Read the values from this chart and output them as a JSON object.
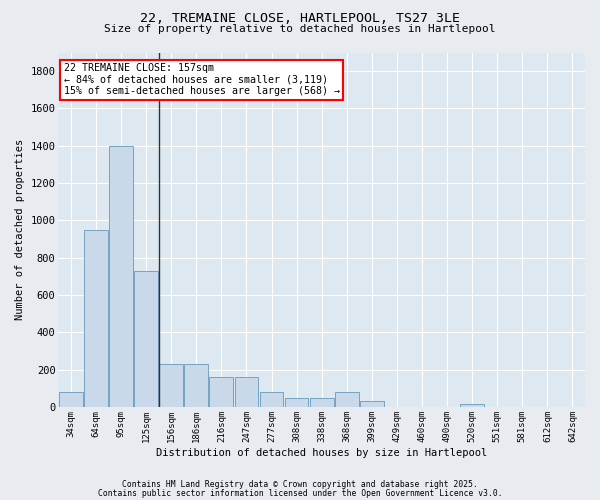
{
  "title_line1": "22, TREMAINE CLOSE, HARTLEPOOL, TS27 3LE",
  "title_line2": "Size of property relative to detached houses in Hartlepool",
  "xlabel": "Distribution of detached houses by size in Hartlepool",
  "ylabel": "Number of detached properties",
  "footnote1": "Contains HM Land Registry data © Crown copyright and database right 2025.",
  "footnote2": "Contains public sector information licensed under the Open Government Licence v3.0.",
  "annotation_line1": "22 TREMAINE CLOSE: 157sqm",
  "annotation_line2": "← 84% of detached houses are smaller (3,119)",
  "annotation_line3": "15% of semi-detached houses are larger (568) →",
  "bar_color": "#c9d9ea",
  "bar_edge_color": "#6699bb",
  "vline_color": "#333333",
  "background_color": "#dde8f0",
  "grid_color": "#ffffff",
  "fig_background": "#e8ecf0",
  "categories": [
    "34sqm",
    "64sqm",
    "95sqm",
    "125sqm",
    "156sqm",
    "186sqm",
    "216sqm",
    "247sqm",
    "277sqm",
    "308sqm",
    "338sqm",
    "368sqm",
    "399sqm",
    "429sqm",
    "460sqm",
    "490sqm",
    "520sqm",
    "551sqm",
    "581sqm",
    "612sqm",
    "642sqm"
  ],
  "values": [
    80,
    950,
    1400,
    730,
    230,
    230,
    160,
    160,
    80,
    50,
    50,
    80,
    30,
    0,
    0,
    0,
    15,
    0,
    0,
    0,
    0
  ],
  "ylim": [
    0,
    1900
  ],
  "yticks": [
    0,
    200,
    400,
    600,
    800,
    1000,
    1200,
    1400,
    1600,
    1800
  ],
  "vline_x_idx": 3.5
}
